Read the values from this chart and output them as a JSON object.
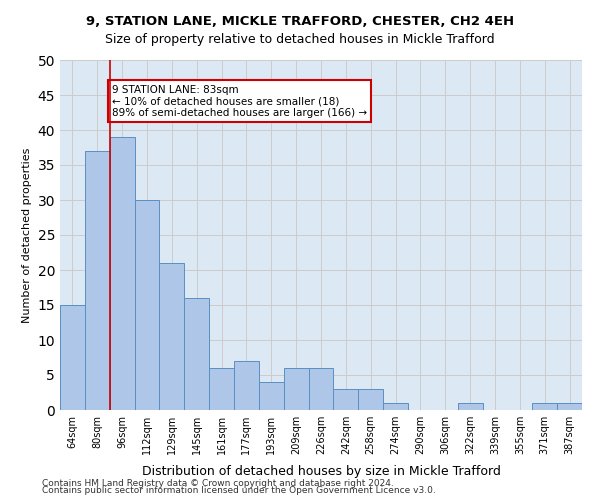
{
  "title1": "9, STATION LANE, MICKLE TRAFFORD, CHESTER, CH2 4EH",
  "title2": "Size of property relative to detached houses in Mickle Trafford",
  "xlabel": "Distribution of detached houses by size in Mickle Trafford",
  "ylabel": "Number of detached properties",
  "categories": [
    "64sqm",
    "80sqm",
    "96sqm",
    "112sqm",
    "129sqm",
    "145sqm",
    "161sqm",
    "177sqm",
    "193sqm",
    "209sqm",
    "226sqm",
    "242sqm",
    "258sqm",
    "274sqm",
    "290sqm",
    "306sqm",
    "322sqm",
    "339sqm",
    "355sqm",
    "371sqm",
    "387sqm"
  ],
  "values": [
    15,
    37,
    39,
    30,
    21,
    16,
    6,
    7,
    4,
    6,
    6,
    3,
    3,
    1,
    0,
    0,
    1,
    0,
    0,
    1,
    1
  ],
  "bar_color": "#aec6e8",
  "bar_edge_color": "#5a8fc2",
  "vline_x": 1,
  "vline_color": "#cc0000",
  "annotation_title": "9 STATION LANE: 83sqm",
  "annotation_line1": "← 10% of detached houses are smaller (18)",
  "annotation_line2": "89% of semi-detached houses are larger (166) →",
  "annotation_box_color": "#cc0000",
  "annotation_bg": "#ffffff",
  "ylim": [
    0,
    50
  ],
  "yticks": [
    0,
    5,
    10,
    15,
    20,
    25,
    30,
    35,
    40,
    45,
    50
  ],
  "grid_color": "#cccccc",
  "bg_color": "#dce9f5",
  "footer1": "Contains HM Land Registry data © Crown copyright and database right 2024.",
  "footer2": "Contains public sector information licensed under the Open Government Licence v3.0."
}
